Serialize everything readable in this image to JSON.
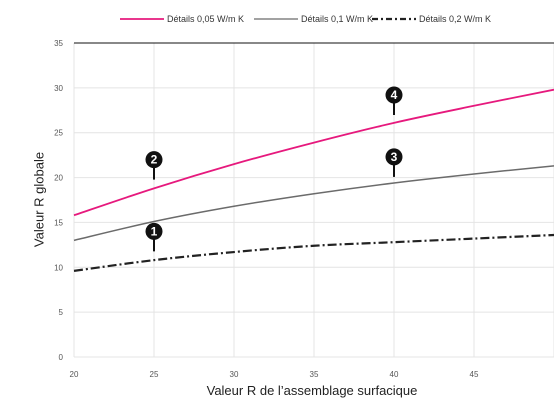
{
  "chart_data": {
    "type": "line",
    "title": "",
    "xlabel": "Valeur R de l’assemblage surfacique",
    "ylabel": "Valeur R globale",
    "xlim": [
      20,
      50
    ],
    "ylim": [
      0,
      35
    ],
    "xticks": [
      "20",
      "25",
      "30",
      "35",
      "40",
      "45"
    ],
    "yticks": [
      "0",
      "5",
      "10",
      "15",
      "20",
      "25",
      "30",
      "35"
    ],
    "grid": true,
    "legend_position": "top",
    "series": [
      {
        "name": "Détails 0,05 W/m K",
        "color": "#e6197d",
        "dash": "solid",
        "x": [
          20,
          25,
          30,
          35,
          40,
          45,
          50
        ],
        "y": [
          15.8,
          18.8,
          21.5,
          23.9,
          26.1,
          28.0,
          29.8
        ]
      },
      {
        "name": "Détails 0,1 W/m K",
        "color": "#6b6b6b",
        "dash": "solid",
        "x": [
          20,
          25,
          30,
          35,
          40,
          45,
          50
        ],
        "y": [
          13.0,
          15.1,
          16.8,
          18.2,
          19.4,
          20.4,
          21.3
        ]
      },
      {
        "name": "Détails 0,2 W/m K",
        "color": "#222222",
        "dash": "dashdot",
        "x": [
          20,
          25,
          30,
          35,
          40,
          45,
          50
        ],
        "y": [
          9.6,
          10.8,
          11.7,
          12.4,
          12.8,
          13.2,
          13.6
        ]
      }
    ],
    "annotations": [
      {
        "label": "1",
        "x": 25,
        "y": 13.0,
        "pointer": "down"
      },
      {
        "label": "2",
        "x": 25,
        "y": 21.0,
        "pointer": "down"
      },
      {
        "label": "3",
        "x": 40,
        "y": 21.3,
        "pointer": "down"
      },
      {
        "label": "4",
        "x": 40,
        "y": 28.2,
        "pointer": "down"
      }
    ]
  }
}
